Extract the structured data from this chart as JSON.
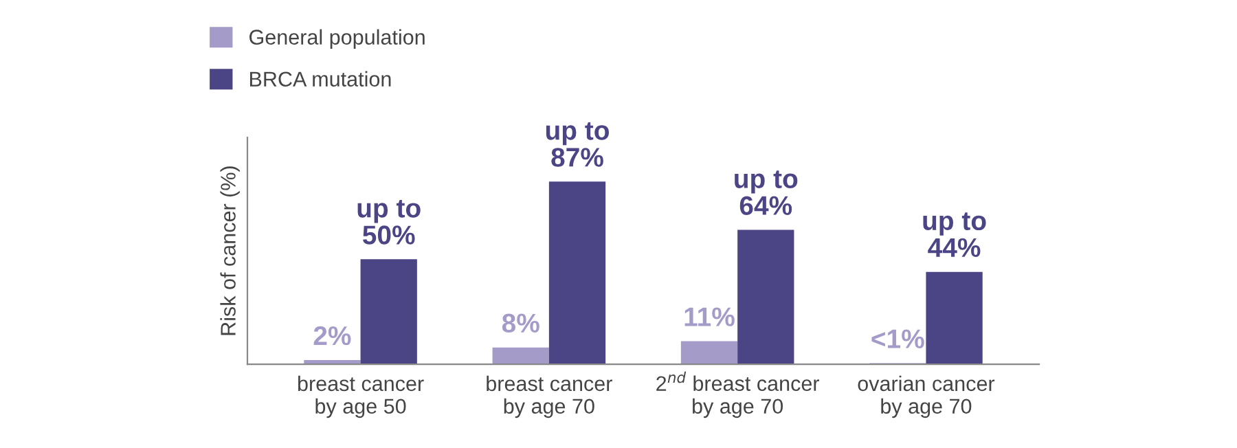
{
  "chart_data": {
    "type": "bar",
    "ylabel": "Risk of cancer (%)",
    "categories": [
      "breast cancer\nby age 50",
      "breast cancer\nby age 70",
      "2$^{nd}$ breast cancer\nby age 70",
      "ovarian cancer\nby age 70"
    ],
    "series": [
      {
        "name": "General population",
        "color": "#a59bc9",
        "values": [
          2,
          8,
          11,
          0.5
        ],
        "value_labels": [
          "2%",
          "8%",
          "11%",
          "<1%"
        ]
      },
      {
        "name": "BRCA mutation",
        "color": "#4b4585",
        "values": [
          50,
          87,
          64,
          44
        ],
        "value_labels": [
          "up to\n50%",
          "up to\n87%",
          "up to\n64%",
          "up to\n44%"
        ]
      }
    ],
    "ylim": [
      0,
      108
    ],
    "legend": "top left",
    "grid": false
  }
}
